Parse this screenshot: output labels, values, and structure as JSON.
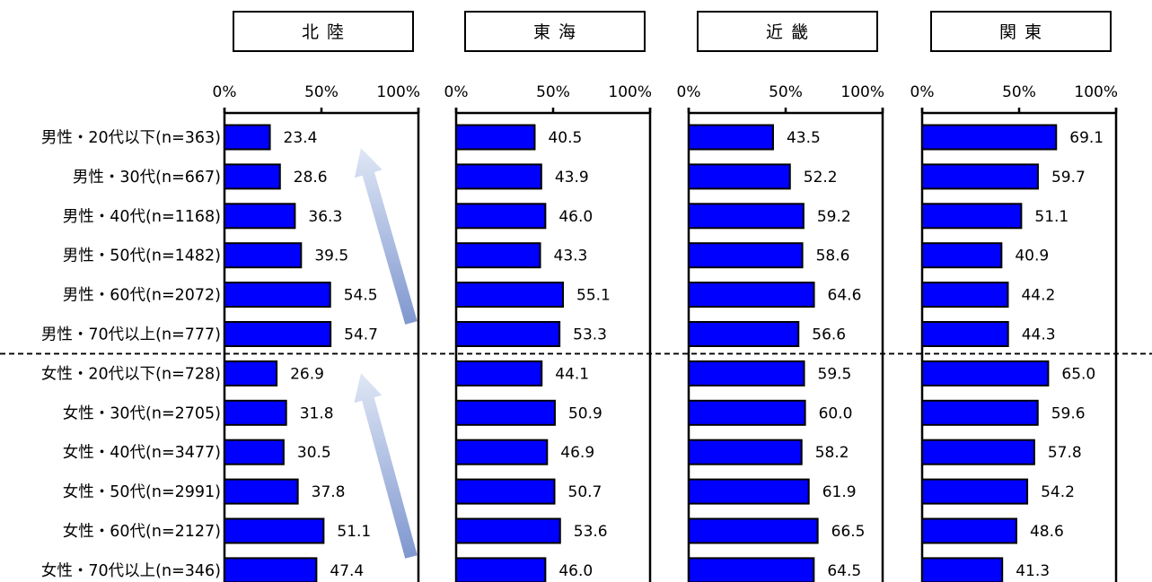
{
  "chart_data": {
    "type": "bar",
    "orientation": "horizontal",
    "categories": [
      "男性・20代以下(n=363)",
      "男性・30代(n=667)",
      "男性・40代(n=1168)",
      "男性・50代(n=1482)",
      "男性・60代(n=2072)",
      "男性・70代以上(n=777)",
      "女性・20代以下(n=728)",
      "女性・30代(n=2705)",
      "女性・40代(n=3477)",
      "女性・50代(n=2991)",
      "女性・60代(n=2127)",
      "女性・70代以上(n=346)"
    ],
    "panels": [
      {
        "title": "北陸",
        "values": [
          23.4,
          28.6,
          36.3,
          39.5,
          54.5,
          54.7,
          26.9,
          31.8,
          30.5,
          37.8,
          51.1,
          47.4
        ]
      },
      {
        "title": "東海",
        "values": [
          40.5,
          43.9,
          46.0,
          43.3,
          55.1,
          53.3,
          44.1,
          50.9,
          46.9,
          50.7,
          53.6,
          46.0
        ]
      },
      {
        "title": "近畿",
        "values": [
          43.5,
          52.2,
          59.2,
          58.6,
          64.6,
          56.6,
          59.5,
          60.0,
          58.2,
          61.9,
          66.5,
          64.5
        ]
      },
      {
        "title": "関東",
        "values": [
          69.1,
          59.7,
          51.1,
          40.9,
          44.2,
          44.3,
          65.0,
          59.6,
          57.8,
          54.2,
          48.6,
          41.3
        ]
      }
    ],
    "xlim": [
      0,
      100
    ],
    "xticks": [
      "0%",
      "50%",
      "100%"
    ],
    "value_format": "one_decimal",
    "bar_color": "#0000ff",
    "group_divider": "dashed line between 男性 and 女性 groups",
    "annotations": [
      "upward gradient arrow in 北陸 panel (男性)",
      "upward gradient arrow in 北陸 panel (女性)"
    ],
    "grid": false,
    "legend": "none"
  }
}
